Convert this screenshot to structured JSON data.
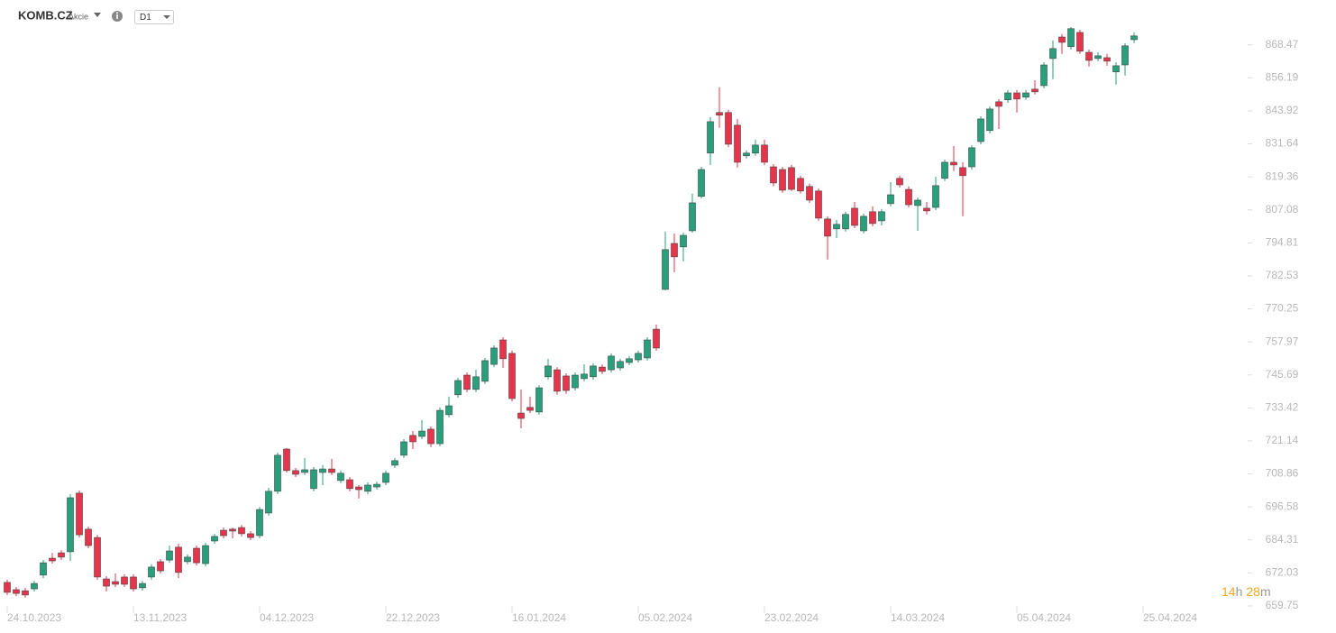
{
  "header": {
    "symbol": "KOMB.CZ",
    "asset_type": "Akcie",
    "timeframe": "D1"
  },
  "countdown": {
    "hours": "14",
    "hours_unit": "h",
    "minutes": "28",
    "minutes_unit": "m"
  },
  "chart_data": {
    "type": "candlestick",
    "up_color": "#26a17b",
    "down_color": "#e8334a",
    "ylim": [
      653.7,
      881.8
    ],
    "yticks": [
      659.75,
      672.03,
      684.31,
      696.58,
      708.86,
      721.14,
      733.42,
      745.69,
      757.97,
      770.25,
      782.53,
      794.81,
      807.08,
      819.36,
      831.64,
      843.92,
      856.19,
      868.47
    ],
    "xticks": [
      {
        "value": 0,
        "label": "24.10.2023"
      },
      {
        "value": 14,
        "label": "13.11.2023"
      },
      {
        "value": 28,
        "label": "04.12.2023"
      },
      {
        "value": 42,
        "label": "22.12.2023"
      },
      {
        "value": 56,
        "label": "16.01.2024"
      },
      {
        "value": 70,
        "label": "05.02.2024"
      },
      {
        "value": 84,
        "label": "23.02.2024"
      },
      {
        "value": 98,
        "label": "14.03.2024"
      },
      {
        "value": 112,
        "label": "05.04.2024"
      },
      {
        "value": 126,
        "label": "25.04.2024"
      }
    ],
    "open": [
      668.5,
      665.8,
      665.4,
      666.1,
      671.2,
      677.5,
      679.5,
      679.9,
      701.7,
      688.3,
      685.2,
      669.8,
      668.8,
      670.5,
      670.5,
      666.5,
      670.5,
      676.2,
      676.8,
      681.6,
      676.2,
      681.2,
      675.5,
      683.9,
      687.9,
      688.3,
      688.9,
      686.6,
      685.9,
      694.3,
      702.4,
      718.1,
      710.1,
      709.4,
      703.4,
      709.4,
      710.7,
      706.4,
      706.7,
      704.0,
      702.4,
      704.0,
      705.7,
      712.1,
      715.8,
      723.2,
      722.8,
      725.5,
      720.1,
      730.9,
      738.3,
      745.6,
      740.3,
      743.3,
      749.6,
      758.7,
      753.7,
      731.5,
      733.6,
      731.9,
      745.0,
      747.6,
      745.3,
      740.9,
      744.3,
      745.0,
      748.6,
      747.6,
      748.3,
      750.3,
      751.3,
      752.0,
      762.7,
      777.5,
      794.6,
      793.3,
      799.3,
      812.1,
      828.2,
      843.3,
      843.3,
      838.6,
      827.2,
      828.2,
      831.2,
      823.1,
      822.1,
      822.8,
      818.8,
      815.8,
      814.1,
      803.7,
      800.0,
      800.0,
      807.7,
      799.3,
      806.4,
      803.0,
      809.4,
      818.8,
      814.7,
      808.7,
      807.7,
      808.0,
      818.8,
      824.8,
      822.8,
      823.1,
      832.5,
      836.6,
      847.3,
      848.0,
      850.6,
      849.0,
      852.0,
      853.3,
      863.4,
      871.4,
      867.8,
      873.1,
      865.7,
      863.4,
      863.7,
      858.4,
      861.0,
      870.4
    ],
    "high": [
      669.5,
      666.8,
      666.5,
      669.1,
      676.8,
      679.5,
      680.5,
      701.3,
      702.7,
      689.3,
      686.2,
      670.8,
      671.8,
      671.5,
      671.5,
      669.1,
      675.2,
      677.2,
      682.2,
      682.9,
      678.9,
      682.2,
      683.2,
      686.6,
      688.9,
      688.9,
      689.9,
      687.6,
      696.6,
      703.7,
      716.8,
      718.5,
      711.1,
      714.8,
      711.4,
      712.1,
      714.4,
      710.1,
      707.7,
      704.7,
      705.7,
      706.0,
      710.1,
      714.8,
      721.8,
      724.8,
      728.9,
      726.5,
      733.6,
      737.6,
      744.6,
      746.6,
      747.6,
      752.0,
      756.7,
      759.7,
      754.7,
      740.3,
      737.6,
      741.9,
      751.7,
      748.6,
      746.3,
      746.6,
      749.6,
      750.0,
      749.6,
      753.7,
      751.7,
      752.7,
      754.7,
      759.7,
      764.4,
      799.0,
      798.3,
      798.6,
      813.1,
      823.1,
      841.6,
      852.7,
      844.3,
      840.9,
      829.2,
      833.2,
      833.2,
      824.1,
      823.1,
      823.8,
      819.8,
      816.8,
      815.1,
      804.7,
      803.3,
      806.4,
      810.0,
      805.7,
      808.4,
      807.4,
      817.4,
      819.8,
      815.8,
      811.7,
      810.0,
      819.4,
      825.8,
      830.8,
      824.8,
      831.2,
      841.9,
      845.6,
      848.3,
      851.6,
      851.6,
      851.6,
      855.3,
      862.0,
      870.1,
      872.5,
      875.1,
      874.1,
      866.7,
      865.7,
      865.1,
      862.0,
      869.1,
      873.1
    ],
    "low": [
      663.8,
      663.4,
      662.8,
      665.1,
      670.1,
      675.5,
      676.8,
      676.5,
      685.2,
      681.2,
      669.5,
      665.1,
      666.8,
      666.8,
      665.1,
      665.4,
      669.5,
      671.8,
      675.8,
      670.1,
      675.2,
      674.8,
      674.5,
      682.9,
      684.9,
      684.9,
      685.6,
      684.2,
      684.9,
      693.3,
      701.3,
      709.4,
      707.7,
      708.4,
      702.4,
      704.7,
      708.4,
      705.4,
      702.4,
      699.7,
      701.3,
      703.0,
      704.7,
      711.1,
      714.8,
      718.1,
      721.8,
      718.8,
      719.1,
      729.9,
      737.2,
      739.3,
      739.3,
      742.3,
      748.6,
      748.3,
      735.9,
      725.8,
      731.5,
      730.9,
      743.9,
      738.3,
      738.6,
      739.9,
      743.3,
      743.9,
      746.0,
      746.6,
      747.3,
      749.3,
      750.3,
      751.0,
      754.7,
      777.2,
      783.9,
      787.9,
      798.6,
      811.4,
      823.8,
      837.6,
      830.5,
      822.8,
      826.2,
      827.2,
      823.8,
      815.8,
      813.4,
      814.1,
      813.1,
      809.7,
      803.0,
      788.6,
      796.6,
      799.0,
      800.3,
      798.3,
      801.0,
      801.3,
      808.4,
      815.4,
      808.0,
      799.3,
      805.4,
      807.0,
      817.8,
      821.5,
      804.7,
      822.1,
      831.5,
      835.5,
      837.2,
      846.9,
      843.3,
      848.0,
      850.0,
      852.3,
      855.7,
      865.1,
      866.7,
      865.1,
      860.4,
      862.4,
      860.7,
      853.7,
      857.0,
      869.1
    ],
    "close": [
      664.8,
      664.4,
      663.8,
      668.1,
      675.8,
      676.5,
      677.9,
      700.0,
      686.2,
      682.2,
      670.5,
      667.1,
      667.8,
      667.8,
      666.1,
      668.1,
      674.2,
      672.8,
      680.2,
      672.2,
      677.9,
      675.8,
      682.2,
      685.6,
      685.9,
      687.6,
      686.6,
      685.2,
      695.6,
      702.4,
      715.8,
      710.1,
      708.7,
      710.4,
      710.4,
      710.7,
      709.4,
      709.1,
      703.4,
      703.0,
      704.7,
      705.0,
      709.1,
      713.8,
      720.8,
      720.8,
      724.8,
      720.1,
      732.5,
      734.2,
      743.6,
      740.3,
      745.0,
      751.0,
      755.7,
      751.7,
      736.9,
      729.5,
      732.5,
      740.9,
      749.0,
      739.6,
      739.9,
      745.6,
      746.0,
      749.0,
      747.0,
      752.7,
      750.7,
      751.7,
      753.7,
      758.7,
      755.7,
      792.3,
      789.6,
      797.6,
      809.7,
      822.1,
      839.9,
      842.3,
      831.5,
      824.8,
      828.2,
      831.2,
      824.8,
      817.1,
      814.4,
      814.7,
      814.1,
      810.7,
      804.0,
      797.3,
      801.7,
      805.4,
      801.3,
      804.7,
      802.0,
      806.4,
      812.7,
      816.4,
      809.0,
      810.7,
      806.7,
      816.1,
      824.8,
      823.8,
      819.8,
      830.2,
      840.9,
      844.6,
      845.6,
      850.6,
      848.3,
      850.6,
      851.0,
      861.0,
      867.1,
      869.4,
      874.5,
      866.1,
      862.7,
      864.4,
      862.4,
      860.7,
      868.1,
      871.8
    ]
  }
}
